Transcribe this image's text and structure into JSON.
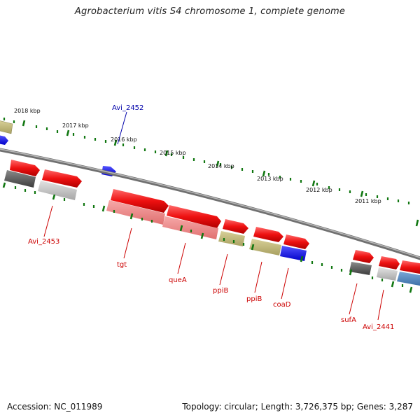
{
  "title": "Agrobacterium vitis S4 chromosome 1, complete genome",
  "footer": {
    "accession": "Accession: NC_011989",
    "info": "Topology: circular; Length: 3,726,375 bp; Genes: 3,287"
  },
  "colors": {
    "forward_gene": "#ee1111",
    "reverse_gene_light": "#f08080",
    "olive_gene": "#b8b070",
    "gray_gene": "#555555",
    "lightgray_gene": "#bbbbbb",
    "blue_gene": "#1111ee",
    "steelblue_gene": "#4a80b8",
    "tick_green": "#117711",
    "backbone": "#808080",
    "label_red": "#cc0000",
    "label_blue": "#0000aa"
  },
  "scale_labels": [
    "2018 kbp",
    "2017 kbp",
    "2016 kbp",
    "2015 kbp",
    "2014 kbp",
    "2013 kbp",
    "2012 kbp",
    "2011 kbp"
  ],
  "gene_labels": [
    {
      "text": "Avi_2452",
      "color": "blue"
    },
    {
      "text": "Avi_2453",
      "color": "red"
    },
    {
      "text": "tgt",
      "color": "red"
    },
    {
      "text": "queA",
      "color": "red"
    },
    {
      "text": "ppiB",
      "color": "red"
    },
    {
      "text": "ppiB",
      "color": "red"
    },
    {
      "text": "coaD",
      "color": "red"
    },
    {
      "text": "sufA",
      "color": "red"
    },
    {
      "text": "Avi_2441",
      "color": "red"
    }
  ]
}
